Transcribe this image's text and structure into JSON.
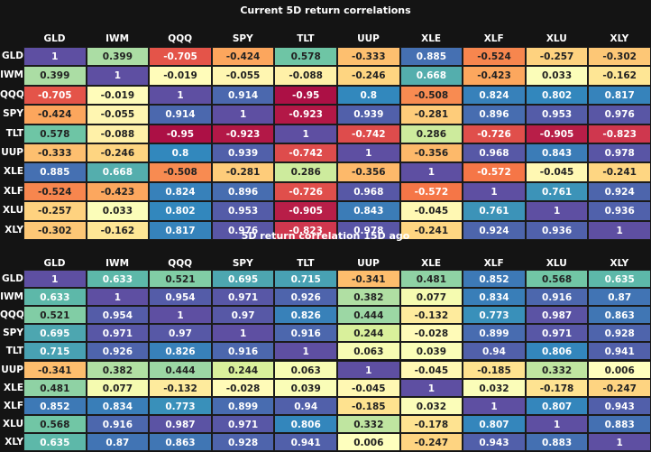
{
  "chart_data": [
    {
      "type": "heatmap",
      "title": "Current 5D return correlations",
      "columns": [
        "GLD",
        "IWM",
        "QQQ",
        "SPY",
        "TLT",
        "UUP",
        "XLE",
        "XLF",
        "XLU",
        "XLY"
      ],
      "rows": [
        "GLD",
        "IWM",
        "QQQ",
        "SPY",
        "TLT",
        "UUP",
        "XLE",
        "XLF",
        "XLU",
        "XLY"
      ],
      "values": [
        [
          "1",
          "0.399",
          "-0.705",
          "-0.424",
          "0.578",
          "-0.333",
          "0.885",
          "-0.524",
          "-0.257",
          "-0.302"
        ],
        [
          "0.399",
          "1",
          "-0.019",
          "-0.055",
          "-0.088",
          "-0.246",
          "0.668",
          "-0.423",
          "0.033",
          "-0.162"
        ],
        [
          "-0.705",
          "-0.019",
          "1",
          "0.914",
          "-0.95",
          "0.8",
          "-0.508",
          "0.824",
          "0.802",
          "0.817"
        ],
        [
          "-0.424",
          "-0.055",
          "0.914",
          "1",
          "-0.923",
          "0.939",
          "-0.281",
          "0.896",
          "0.953",
          "0.976"
        ],
        [
          "0.578",
          "-0.088",
          "-0.95",
          "-0.923",
          "1",
          "-0.742",
          "0.286",
          "-0.726",
          "-0.905",
          "-0.823"
        ],
        [
          "-0.333",
          "-0.246",
          "0.8",
          "0.939",
          "-0.742",
          "1",
          "-0.356",
          "0.968",
          "0.843",
          "0.978"
        ],
        [
          "0.885",
          "0.668",
          "-0.508",
          "-0.281",
          "0.286",
          "-0.356",
          "1",
          "-0.572",
          "-0.045",
          "-0.241"
        ],
        [
          "-0.524",
          "-0.423",
          "0.824",
          "0.896",
          "-0.726",
          "0.968",
          "-0.572",
          "1",
          "0.761",
          "0.924"
        ],
        [
          "-0.257",
          "0.033",
          "0.802",
          "0.953",
          "-0.905",
          "0.843",
          "-0.045",
          "0.761",
          "1",
          "0.936"
        ],
        [
          "-0.302",
          "-0.162",
          "0.817",
          "0.976",
          "-0.823",
          "0.978",
          "-0.241",
          "0.924",
          "0.936",
          "1"
        ]
      ],
      "color_range": [
        -1,
        1
      ],
      "colormap": "Spectral"
    },
    {
      "type": "heatmap",
      "title": "5D return correlation 15D ago",
      "columns": [
        "GLD",
        "IWM",
        "QQQ",
        "SPY",
        "TLT",
        "UUP",
        "XLE",
        "XLF",
        "XLU",
        "XLY"
      ],
      "rows": [
        "GLD",
        "IWM",
        "QQQ",
        "SPY",
        "TLT",
        "UUP",
        "XLE",
        "XLF",
        "XLU",
        "XLY"
      ],
      "values": [
        [
          "1",
          "0.633",
          "0.521",
          "0.695",
          "0.715",
          "-0.341",
          "0.481",
          "0.852",
          "0.568",
          "0.635"
        ],
        [
          "0.633",
          "1",
          "0.954",
          "0.971",
          "0.926",
          "0.382",
          "0.077",
          "0.834",
          "0.916",
          "0.87"
        ],
        [
          "0.521",
          "0.954",
          "1",
          "0.97",
          "0.826",
          "0.444",
          "-0.132",
          "0.773",
          "0.987",
          "0.863"
        ],
        [
          "0.695",
          "0.971",
          "0.97",
          "1",
          "0.916",
          "0.244",
          "-0.028",
          "0.899",
          "0.971",
          "0.928"
        ],
        [
          "0.715",
          "0.926",
          "0.826",
          "0.916",
          "1",
          "0.063",
          "0.039",
          "0.94",
          "0.806",
          "0.941"
        ],
        [
          "-0.341",
          "0.382",
          "0.444",
          "0.244",
          "0.063",
          "1",
          "-0.045",
          "-0.185",
          "0.332",
          "0.006"
        ],
        [
          "0.481",
          "0.077",
          "-0.132",
          "-0.028",
          "0.039",
          "-0.045",
          "1",
          "0.032",
          "-0.178",
          "-0.247"
        ],
        [
          "0.852",
          "0.834",
          "0.773",
          "0.899",
          "0.94",
          "-0.185",
          "0.032",
          "1",
          "0.807",
          "0.943"
        ],
        [
          "0.568",
          "0.916",
          "0.987",
          "0.971",
          "0.806",
          "0.332",
          "-0.178",
          "0.807",
          "1",
          "0.883"
        ],
        [
          "0.635",
          "0.87",
          "0.863",
          "0.928",
          "0.941",
          "0.006",
          "-0.247",
          "0.943",
          "0.883",
          "1"
        ]
      ],
      "color_range": [
        -1,
        1
      ],
      "colormap": "Spectral"
    }
  ]
}
